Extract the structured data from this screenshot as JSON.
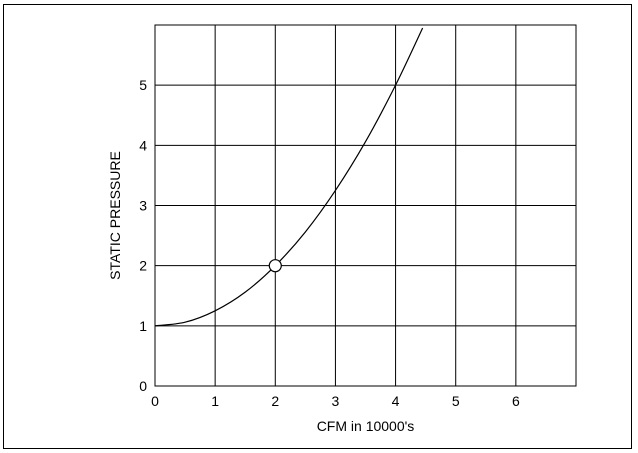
{
  "chart_data": {
    "type": "line",
    "title": "",
    "xlabel": "CFM in 10000's",
    "ylabel": "STATIC PRESSURE",
    "xlim": [
      0,
      7
    ],
    "ylim": [
      0,
      6
    ],
    "xticks": [
      0,
      1,
      2,
      3,
      4,
      5,
      6
    ],
    "yticks": [
      0,
      1,
      2,
      3,
      4,
      5
    ],
    "xtick_labels": [
      "0",
      "1",
      "2",
      "3",
      "4",
      "5",
      "6"
    ],
    "ytick_labels": [
      "0",
      "1",
      "2",
      "3",
      "4",
      "5"
    ],
    "grid": true,
    "series": [
      {
        "x": [
          0,
          0.5,
          1,
          1.5,
          2,
          2.5,
          3,
          3.5,
          4,
          4.45
        ],
        "y": [
          1.0,
          1.06,
          1.25,
          1.56,
          2.0,
          2.56,
          3.25,
          4.06,
          5.0,
          5.95
        ]
      }
    ],
    "annotations": [
      {
        "type": "marker",
        "shape": "open-circle",
        "x": 2,
        "y": 2
      }
    ],
    "colors": {
      "line": "#000000",
      "grid": "#000000",
      "background": "#ffffff"
    }
  }
}
